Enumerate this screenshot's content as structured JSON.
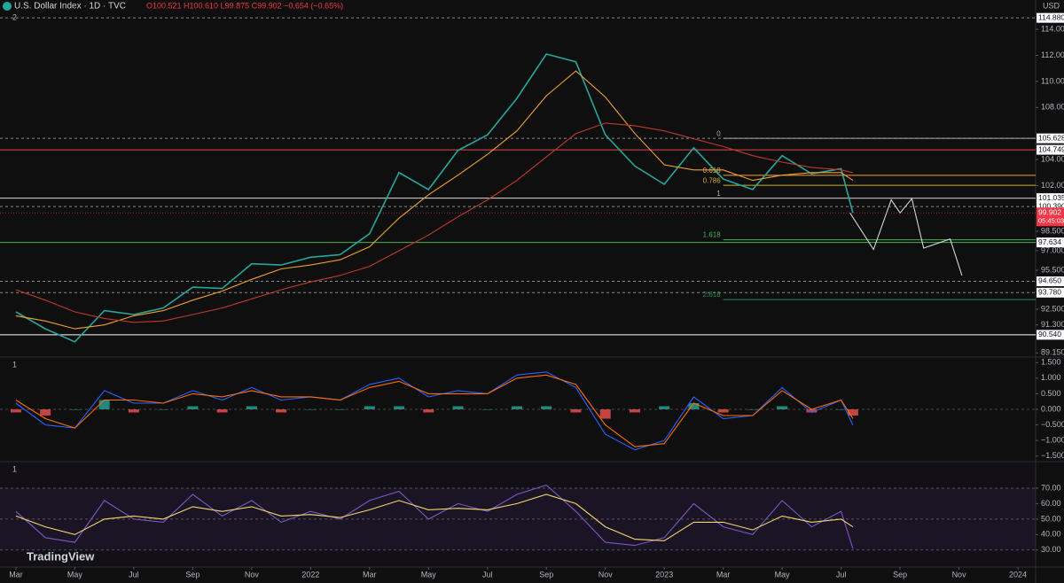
{
  "ui": {
    "symbol": "U.S. Dollar Index · 1D · TVC",
    "ohlc": "O100.521 H100.610 L99.875 C99.902 −0.654 (−0.65%)",
    "currency": "USD",
    "price_pane_label": "2",
    "macd_pane_label": "1",
    "rsi_pane_label": "1",
    "logo": "TradingView",
    "countdown": "05:45:03"
  },
  "chart_data": [
    {
      "type": "line",
      "x": [
        0,
        1,
        2,
        3,
        4,
        5,
        6,
        7,
        8,
        9,
        10,
        11,
        12,
        13,
        14,
        15,
        16,
        17,
        18,
        19,
        20,
        21,
        22,
        23,
        24,
        25,
        26,
        27,
        28,
        28.4
      ],
      "xlim": [
        -0.54,
        34.6
      ],
      "xticks": [
        {
          "value": 0,
          "label": "Mar"
        },
        {
          "value": 2,
          "label": "May"
        },
        {
          "value": 4,
          "label": "Jul"
        },
        {
          "value": 6,
          "label": "Sep"
        },
        {
          "value": 8,
          "label": "Nov"
        },
        {
          "value": 10,
          "label": "2022"
        },
        {
          "value": 12,
          "label": "Mar"
        },
        {
          "value": 14,
          "label": "May"
        },
        {
          "value": 16,
          "label": "Jul"
        },
        {
          "value": 18,
          "label": "Sep"
        },
        {
          "value": 20,
          "label": "Nov"
        },
        {
          "value": 22,
          "label": "2023"
        },
        {
          "value": 24,
          "label": "Mar"
        },
        {
          "value": 26,
          "label": "May"
        },
        {
          "value": 28,
          "label": "Jul"
        },
        {
          "value": 30,
          "label": "Sep"
        },
        {
          "value": 32,
          "label": "Nov"
        },
        {
          "value": 34,
          "label": "2024"
        }
      ],
      "ylim": [
        88.9,
        115.3
      ],
      "yticks": [
        {
          "value": 114,
          "label": "114.000"
        },
        {
          "value": 112,
          "label": "112.000"
        },
        {
          "value": 110,
          "label": "110.000"
        },
        {
          "value": 108,
          "label": "108.000"
        },
        {
          "value": 104,
          "label": "104.000"
        },
        {
          "value": 102,
          "label": "102.000"
        },
        {
          "value": 98.5,
          "label": "98.500"
        },
        {
          "value": 97,
          "label": "97.000"
        },
        {
          "value": 95.5,
          "label": "95.500"
        },
        {
          "value": 92.5,
          "label": "92.500"
        },
        {
          "value": 91.3,
          "label": "91.300"
        },
        {
          "value": 89.15,
          "label": "89.150"
        }
      ],
      "series": [
        {
          "color": "#26a69a",
          "values": [
            92.3,
            91.0,
            90.0,
            92.4,
            92.1,
            92.6,
            94.2,
            94.1,
            96.0,
            95.9,
            96.5,
            96.7,
            98.3,
            103.0,
            101.7,
            104.7,
            105.9,
            108.7,
            112.1,
            111.5,
            105.9,
            103.5,
            102.1,
            104.9,
            102.5,
            101.7,
            104.3,
            102.9,
            103.3,
            99.9
          ]
        },
        {
          "color": "#f0a030",
          "values": [
            92.0,
            91.6,
            91.0,
            91.3,
            92.0,
            92.4,
            93.2,
            93.9,
            94.8,
            95.6,
            95.9,
            96.3,
            97.3,
            99.5,
            101.3,
            102.8,
            104.4,
            106.2,
            108.9,
            110.8,
            108.8,
            106.0,
            103.6,
            103.2,
            103.2,
            102.4,
            102.8,
            103.0,
            103.0,
            102.4
          ]
        },
        {
          "color": "#c0392b",
          "values": [
            94.0,
            93.2,
            92.3,
            91.8,
            91.5,
            91.6,
            92.1,
            92.6,
            93.3,
            94.0,
            94.6,
            95.1,
            95.8,
            97.0,
            98.2,
            99.6,
            100.9,
            102.4,
            104.2,
            106.0,
            106.8,
            106.6,
            106.2,
            105.6,
            105.0,
            104.3,
            103.8,
            103.4,
            103.2,
            103.0
          ]
        },
        {
          "color": "#d1d4dc",
          "x": [
            28.3,
            29.1,
            29.7,
            30.0,
            30.4,
            30.8,
            31.7,
            32.1
          ],
          "values": [
            99.9,
            97.1,
            100.9,
            99.9,
            101.0,
            97.2,
            97.9,
            95.1
          ]
        }
      ],
      "levels": [
        {
          "value": 114.88,
          "label": "114.880",
          "color": "#888888",
          "dashed": true
        },
        {
          "value": 105.628,
          "label": "105.628",
          "color": "#888888",
          "dashed": true
        },
        {
          "value": 104.749,
          "label": "104.749",
          "color": "#e04a4a",
          "dashed": false
        },
        {
          "value": 101.035,
          "label": "101.035",
          "color": "#dddddd",
          "dashed": false
        },
        {
          "value": 100.39,
          "label": "100.390",
          "color": "#888888",
          "dashed": true
        },
        {
          "value": 97.634,
          "label": "97.634",
          "color": "#4caf50",
          "dashed": false
        },
        {
          "value": 94.65,
          "label": "94.650",
          "color": "#888888",
          "dashed": true
        },
        {
          "value": 93.78,
          "label": "93.780",
          "color": "#888888",
          "dashed": true
        },
        {
          "value": 90.54,
          "label": "90.540",
          "color": "#ffffff",
          "dashed": false
        }
      ],
      "fib": [
        {
          "ratio": 0,
          "price": 105.628,
          "color": "#aaaaaa"
        },
        {
          "ratio": 0.618,
          "price": 102.79,
          "color": "#f0a030"
        },
        {
          "ratio": 0.786,
          "price": 102.02,
          "color": "#c8b030"
        },
        {
          "ratio": 1,
          "price": 101.035,
          "color": "#aaaaaa"
        },
        {
          "ratio": 1.618,
          "price": 97.84,
          "color": "#4caf50"
        },
        {
          "ratio": 2.618,
          "price": 93.25,
          "color": "#2e8b57"
        }
      ],
      "fib_start": 24,
      "last_price": {
        "value": 99.902,
        "label": "99.902",
        "color": "#f23645"
      }
    },
    {
      "type": "line",
      "x": [
        0,
        1,
        2,
        3,
        4,
        5,
        6,
        7,
        8,
        9,
        10,
        11,
        12,
        13,
        14,
        15,
        16,
        17,
        18,
        19,
        20,
        21,
        22,
        23,
        24,
        25,
        26,
        27,
        28,
        28.4
      ],
      "ylim": [
        -1.65,
        1.65
      ],
      "yticks": [
        {
          "value": 1.5,
          "label": "1.500"
        },
        {
          "value": 1,
          "label": "1.000"
        },
        {
          "value": 0.5,
          "label": "0.500"
        },
        {
          "value": 0,
          "label": "0.000"
        },
        {
          "value": -0.5,
          "label": "−0.500"
        },
        {
          "value": -1,
          "label": "−1.000"
        },
        {
          "value": -1.5,
          "label": "−1.500"
        }
      ],
      "series": [
        {
          "type": "bar",
          "color": "#26a69a",
          "negative_color": "#ef5350",
          "values": [
            -0.1,
            -0.2,
            0,
            0.3,
            -0.1,
            0,
            0.1,
            -0.1,
            0.1,
            -0.1,
            0,
            0,
            0.1,
            0.1,
            -0.1,
            0.1,
            0,
            0.1,
            0.1,
            -0.1,
            -0.3,
            -0.1,
            0.1,
            0.2,
            -0.1,
            0,
            0.1,
            -0.1,
            0,
            -0.2
          ]
        },
        {
          "color": "#2962ff",
          "values": [
            0.2,
            -0.5,
            -0.6,
            0.6,
            0.2,
            0.2,
            0.6,
            0.3,
            0.7,
            0.3,
            0.4,
            0.3,
            0.8,
            1.0,
            0.4,
            0.6,
            0.5,
            1.1,
            1.2,
            0.7,
            -0.8,
            -1.3,
            -1.0,
            0.4,
            -0.3,
            -0.2,
            0.7,
            -0.1,
            0.3,
            -0.5
          ]
        },
        {
          "color": "#ff6d00",
          "values": [
            0.3,
            -0.3,
            -0.6,
            0.3,
            0.3,
            0.2,
            0.5,
            0.4,
            0.6,
            0.4,
            0.4,
            0.3,
            0.7,
            0.9,
            0.5,
            0.5,
            0.5,
            1.0,
            1.1,
            0.8,
            -0.5,
            -1.2,
            -1.1,
            0.2,
            -0.2,
            -0.2,
            0.6,
            0.0,
            0.3,
            -0.3
          ]
        }
      ]
    },
    {
      "type": "line",
      "x": [
        0,
        1,
        2,
        3,
        4,
        5,
        6,
        7,
        8,
        9,
        10,
        11,
        12,
        13,
        14,
        15,
        16,
        17,
        18,
        19,
        20,
        21,
        22,
        23,
        24,
        25,
        26,
        27,
        28,
        28.4
      ],
      "ylim": [
        19,
        86.6
      ],
      "yticks": [
        {
          "value": 70,
          "label": "70.00"
        },
        {
          "value": 60,
          "label": "60.00"
        },
        {
          "value": 50,
          "label": "50.00"
        },
        {
          "value": 40,
          "label": "40.00"
        },
        {
          "value": 30,
          "label": "30.00"
        }
      ],
      "series": [
        {
          "color": "#7e57c2",
          "values": [
            55,
            38,
            35,
            62,
            50,
            48,
            66,
            52,
            62,
            48,
            55,
            50,
            62,
            68,
            50,
            60,
            55,
            66,
            72,
            55,
            35,
            33,
            38,
            60,
            45,
            40,
            62,
            45,
            55,
            31
          ]
        },
        {
          "color": "#f5d76e",
          "values": [
            52,
            45,
            40,
            50,
            52,
            50,
            58,
            55,
            58,
            52,
            53,
            51,
            56,
            62,
            56,
            57,
            56,
            60,
            66,
            60,
            45,
            37,
            36,
            48,
            48,
            43,
            52,
            48,
            50,
            45
          ]
        }
      ]
    }
  ]
}
